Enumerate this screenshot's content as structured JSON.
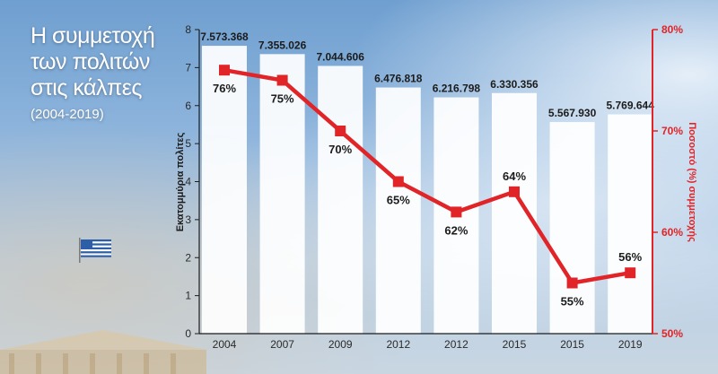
{
  "title": {
    "lines": [
      "Η συμμετοχή",
      "των πολιτών",
      "στις κάλπες"
    ],
    "subtitle": "(2004-2019)"
  },
  "colors": {
    "accent": "#e02427",
    "bar": "#ffffff",
    "axis": "#1c1c1c"
  },
  "chart_data": {
    "type": "bar",
    "categories": [
      "2004",
      "2007",
      "2009",
      "2012",
      "2012",
      "2015",
      "2015",
      "2019"
    ],
    "series": [
      {
        "values": [
          7573368,
          7355026,
          7044606,
          6476818,
          6216798,
          6330356,
          5567930,
          5769644
        ],
        "value_labels": [
          "7.573.368",
          "7.355.026",
          "7.044.606",
          "6.476.818",
          "6.216.798",
          "6.330.356",
          "5.567.930",
          "5.769.644"
        ]
      },
      {
        "type": "line",
        "axis": "right",
        "values": [
          76,
          75,
          70,
          65,
          62,
          64,
          55,
          56
        ],
        "value_labels": [
          "76%",
          "75%",
          "70%",
          "65%",
          "62%",
          "64%",
          "55%",
          "56%"
        ]
      }
    ],
    "ylabel": "Εκατομμύρια πολίτες",
    "ylim": [
      0,
      8
    ],
    "yticks": [
      "0",
      "1",
      "2",
      "3",
      "4",
      "5",
      "6",
      "7",
      "8"
    ],
    "ylabel_right": "Ποσοστό (%) συμμετοχής",
    "ylim_right": [
      50,
      80
    ],
    "yticks_right": [
      "50%",
      "60%",
      "70%",
      "80%"
    ],
    "grid": false,
    "legend": "none"
  }
}
